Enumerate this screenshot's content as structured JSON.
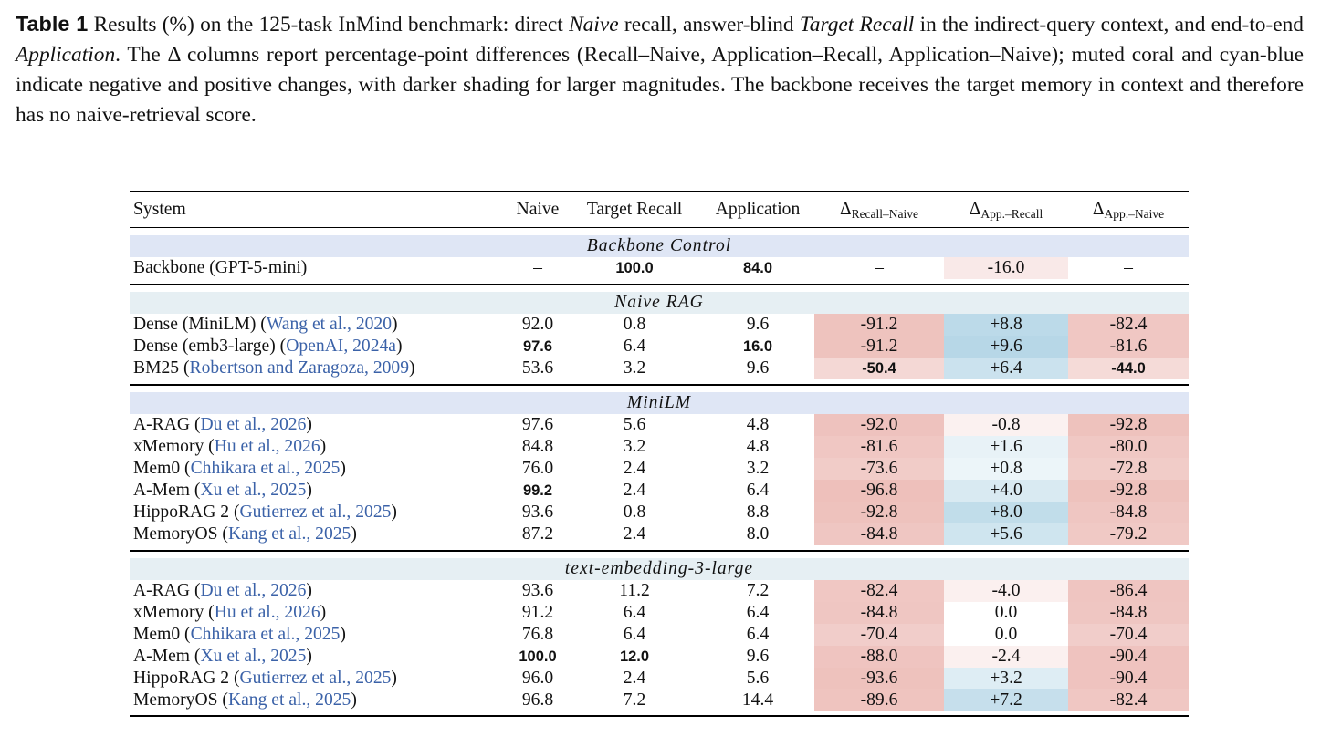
{
  "caption": {
    "label": "Table 1",
    "parts": [
      {
        "t": "  Results (%) on the 125-task InMind benchmark: direct ",
        "i": false
      },
      {
        "t": "Naive",
        "i": true
      },
      {
        "t": " recall, answer-blind ",
        "i": false
      },
      {
        "t": "Target Recall",
        "i": true
      },
      {
        "t": " in the indirect-query context, and end-to-end ",
        "i": false
      },
      {
        "t": "Application",
        "i": true
      },
      {
        "t": ". The Δ columns report percentage-point differences (Recall–Naive, Application–Recall, Application–Naive); muted coral and cyan-blue indicate negative and positive changes, with darker shading for larger magnitudes. The backbone receives the target memory in context and therefore has no naive-retrieval score.",
        "i": false
      }
    ]
  },
  "colors": {
    "section_a": "#dfe6f5",
    "section_b": "#e6eff3",
    "neg_base": [
      218,
      120,
      110
    ],
    "pos_base": [
      120,
      180,
      210
    ],
    "citation": "#3b62a8"
  },
  "table": {
    "headers": {
      "system": "System",
      "naive": "Naive",
      "target": "Target Recall",
      "application": "Application",
      "d1": "Δ",
      "d1_sub": "Recall–Naive",
      "d2": "Δ",
      "d2_sub": "App.–Recall",
      "d3": "Δ",
      "d3_sub": "App.–Naive"
    },
    "sections": [
      {
        "title": "Backbone Control",
        "shade": "a",
        "rows": [
          {
            "name": "Backbone (GPT-5-mini)",
            "cite": "",
            "pre": "",
            "post": "",
            "naive": "–",
            "target": "100.0",
            "app": "84.0",
            "d1": "–",
            "d2": "-16.0",
            "d3": "–",
            "bold": [
              "target",
              "app"
            ]
          }
        ]
      },
      {
        "title": "Naive RAG",
        "shade": "b",
        "rows": [
          {
            "name": "Dense (MiniLM) (",
            "cite": "Wang et al., 2020",
            "post": ")",
            "naive": "92.0",
            "target": "0.8",
            "app": "9.6",
            "d1": "-91.2",
            "d2": "+8.8",
            "d3": "-82.4",
            "bold": []
          },
          {
            "name": "Dense (emb3-large) (",
            "cite": "OpenAI, 2024a",
            "post": ")",
            "naive": "97.6",
            "target": "6.4",
            "app": "16.0",
            "d1": "-91.2",
            "d2": "+9.6",
            "d3": "-81.6",
            "bold": [
              "naive",
              "app"
            ]
          },
          {
            "name": "BM25 (",
            "cite": "Robertson and Zaragoza, 2009",
            "post": ")",
            "naive": "53.6",
            "target": "3.2",
            "app": "9.6",
            "d1": "-50.4",
            "d2": "+6.4",
            "d3": "-44.0",
            "bold": [
              "d1",
              "d3"
            ]
          }
        ]
      },
      {
        "title": "MiniLM",
        "shade": "a",
        "rows": [
          {
            "name": "A-RAG (",
            "cite": "Du et al., 2026",
            "post": ")",
            "naive": "97.6",
            "target": "5.6",
            "app": "4.8",
            "d1": "-92.0",
            "d2": "-0.8",
            "d3": "-92.8",
            "bold": []
          },
          {
            "name": "xMemory (",
            "cite": "Hu et al., 2026",
            "post": ")",
            "naive": "84.8",
            "target": "3.2",
            "app": "4.8",
            "d1": "-81.6",
            "d2": "+1.6",
            "d3": "-80.0",
            "bold": []
          },
          {
            "name": "Mem0 (",
            "cite": "Chhikara et al., 2025",
            "post": ")",
            "naive": "76.0",
            "target": "2.4",
            "app": "3.2",
            "d1": "-73.6",
            "d2": "+0.8",
            "d3": "-72.8",
            "bold": []
          },
          {
            "name": "A-Mem (",
            "cite": "Xu et al., 2025",
            "post": ")",
            "naive": "99.2",
            "target": "2.4",
            "app": "6.4",
            "d1": "-96.8",
            "d2": "+4.0",
            "d3": "-92.8",
            "bold": [
              "naive"
            ]
          },
          {
            "name": "HippoRAG 2 (",
            "cite": "Gutierrez et al., 2025",
            "post": ")",
            "naive": "93.6",
            "target": "0.8",
            "app": "8.8",
            "d1": "-92.8",
            "d2": "+8.0",
            "d3": "-84.8",
            "bold": []
          },
          {
            "name": "MemoryOS (",
            "cite": "Kang et al., 2025",
            "post": ")",
            "naive": "87.2",
            "target": "2.4",
            "app": "8.0",
            "d1": "-84.8",
            "d2": "+5.6",
            "d3": "-79.2",
            "bold": []
          }
        ]
      },
      {
        "title": "text-embedding-3-large",
        "shade": "b",
        "rows": [
          {
            "name": "A-RAG (",
            "cite": "Du et al., 2026",
            "post": ")",
            "naive": "93.6",
            "target": "11.2",
            "app": "7.2",
            "d1": "-82.4",
            "d2": "-4.0",
            "d3": "-86.4",
            "bold": []
          },
          {
            "name": "xMemory (",
            "cite": "Hu et al., 2026",
            "post": ")",
            "naive": "91.2",
            "target": "6.4",
            "app": "6.4",
            "d1": "-84.8",
            "d2": "0.0",
            "d3": "-84.8",
            "bold": []
          },
          {
            "name": "Mem0 (",
            "cite": "Chhikara et al., 2025",
            "post": ")",
            "naive": "76.8",
            "target": "6.4",
            "app": "6.4",
            "d1": "-70.4",
            "d2": "0.0",
            "d3": "-70.4",
            "bold": []
          },
          {
            "name": "A-Mem (",
            "cite": "Xu et al., 2025",
            "post": ")",
            "naive": "100.0",
            "target": "12.0",
            "app": "9.6",
            "d1": "-88.0",
            "d2": "-2.4",
            "d3": "-90.4",
            "bold": [
              "naive",
              "target"
            ]
          },
          {
            "name": "HippoRAG 2 (",
            "cite": "Gutierrez et al., 2025",
            "post": ")",
            "naive": "96.0",
            "target": "2.4",
            "app": "5.6",
            "d1": "-93.6",
            "d2": "+3.2",
            "d3": "-90.4",
            "bold": []
          },
          {
            "name": "MemoryOS (",
            "cite": "Kang et al., 2025",
            "post": ")",
            "naive": "96.8",
            "target": "7.2",
            "app": "14.4",
            "d1": "-89.6",
            "d2": "+7.2",
            "d3": "-82.4",
            "bold": []
          }
        ]
      }
    ]
  }
}
